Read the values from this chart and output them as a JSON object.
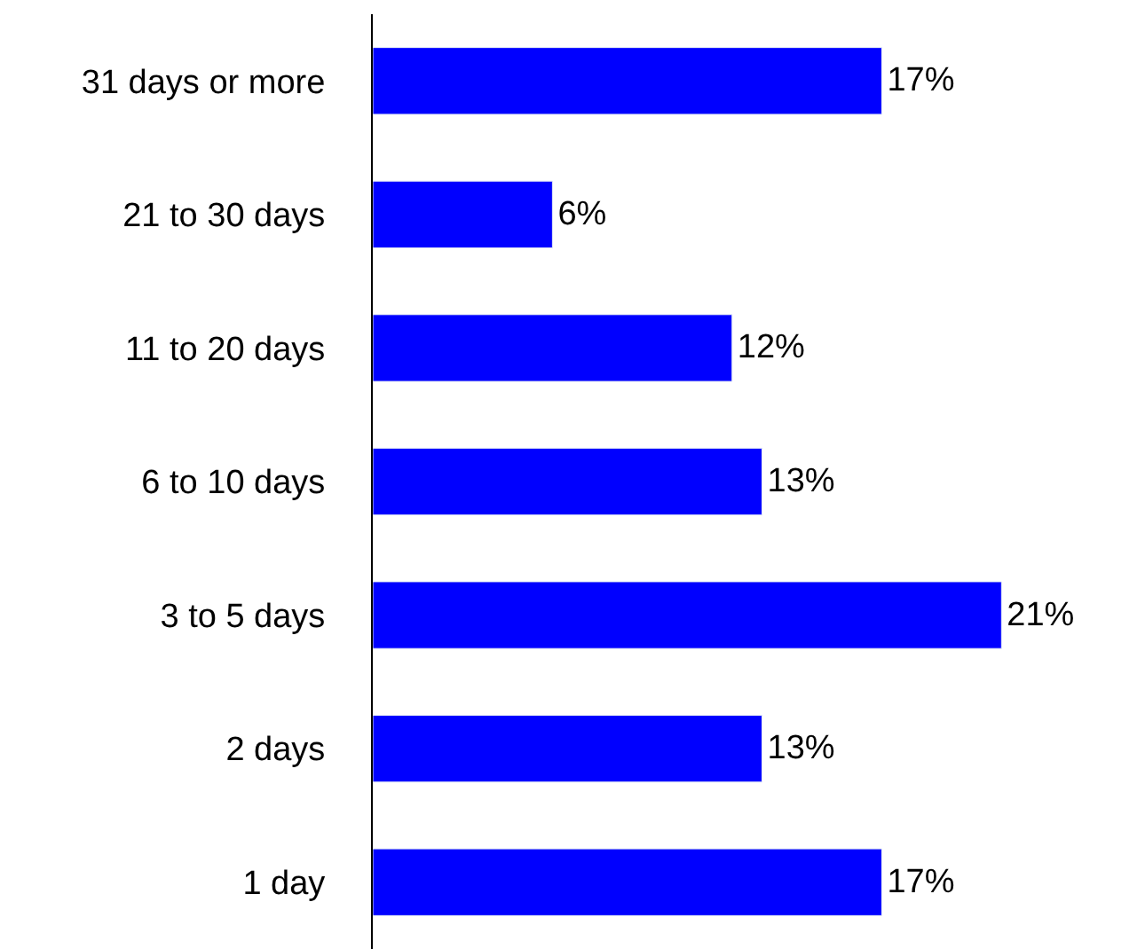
{
  "chart_data": {
    "type": "bar",
    "orientation": "horizontal",
    "categories": [
      "31 days or more",
      "21 to 30 days",
      "11 to 20 days",
      "6 to 10 days",
      "3 to 5 days",
      "2 days",
      "1 day"
    ],
    "values": [
      17,
      6,
      12,
      13,
      21,
      13,
      17
    ],
    "value_labels": [
      "17%",
      "6%",
      "12%",
      "13%",
      "21%",
      "13%",
      "17%"
    ],
    "color": "#0000ff"
  }
}
